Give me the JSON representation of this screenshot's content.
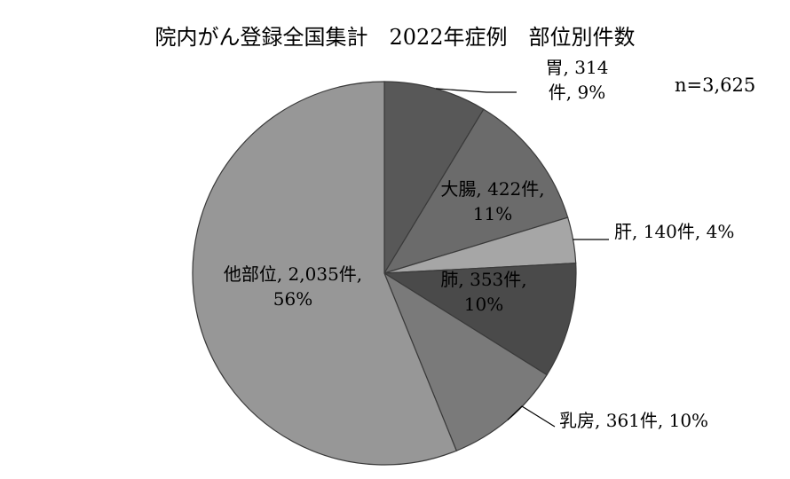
{
  "chart_data": {
    "type": "pie",
    "title": "院内がん登録全国集計　2022年症例　部位別件数",
    "annotation": "n=3,625",
    "slices": [
      {
        "category": "胃",
        "value": 314,
        "percent": 9,
        "color": "#585858",
        "label_lines": [
          "胃, 314",
          "件, 9%"
        ]
      },
      {
        "category": "大腸",
        "value": 422,
        "percent": 11,
        "color": "#6b6b6b",
        "label_lines": [
          "大腸, 422件,",
          "11%"
        ]
      },
      {
        "category": "肝",
        "value": 140,
        "percent": 4,
        "color": "#a6a6a6",
        "label_lines": [
          "肝, 140件, 4%"
        ]
      },
      {
        "category": "肺",
        "value": 353,
        "percent": 10,
        "color": "#4a4a4a",
        "label_lines": [
          "肺, 353件,",
          "10%"
        ]
      },
      {
        "category": "乳房",
        "value": 361,
        "percent": 10,
        "color": "#7a7a7a",
        "label_lines": [
          "乳房, 361件, 10%"
        ]
      },
      {
        "category": "他部位",
        "value": 2035,
        "percent": 56,
        "color": "#979797",
        "label_lines": [
          "他部位, 2,035件,",
          "56%"
        ]
      }
    ]
  }
}
